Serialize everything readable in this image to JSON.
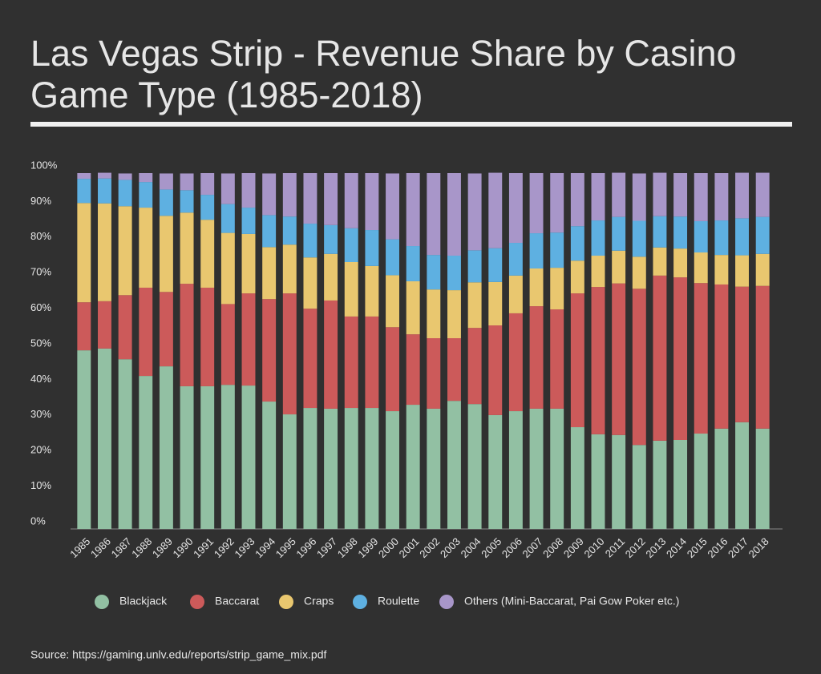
{
  "chart_data": {
    "type": "stacked_bar",
    "title": [
      "Las Vegas Strip - Revenue Share by Casino",
      "Game Type (1985-2018)"
    ],
    "source": "Source: https://gaming.unlv.edu/reports/strip_game_mix.pdf",
    "categories": [
      "1985",
      "1986",
      "1987",
      "1988",
      "1989",
      "1990",
      "1991",
      "1992",
      "1993",
      "1994",
      "1995",
      "1996",
      "1997",
      "1998",
      "1999",
      "2000",
      "2001",
      "2002",
      "2003",
      "2004",
      "2005",
      "2006",
      "2007",
      "2008",
      "2009",
      "2010",
      "2011",
      "2012",
      "2013",
      "2014",
      "2015",
      "2016",
      "2017",
      "2018"
    ],
    "ylim": [
      0,
      100
    ],
    "yticks": [
      {
        "value": 0,
        "label": "0%"
      },
      {
        "value": 10,
        "label": "10%"
      },
      {
        "value": 20,
        "label": "20%"
      },
      {
        "value": 30,
        "label": "30%"
      },
      {
        "value": 40,
        "label": "40%"
      },
      {
        "value": 50,
        "label": "50%"
      },
      {
        "value": 60,
        "label": "60%"
      },
      {
        "value": 70,
        "label": "70%"
      },
      {
        "value": 80,
        "label": "80%"
      },
      {
        "value": 90,
        "label": "90%"
      },
      {
        "value": 100,
        "label": "100%"
      }
    ],
    "legend": "bottom",
    "series": [
      {
        "name": "Blackjack",
        "color": "#92c0a3",
        "values": [
          50.2,
          50.7,
          47.7,
          43.0,
          45.7,
          40.1,
          40.1,
          40.5,
          40.3,
          35.8,
          32.2,
          34.0,
          33.8,
          34.0,
          34.0,
          33.1,
          34.9,
          33.8,
          36.0,
          35.1,
          32.0,
          33.1,
          33.8,
          33.8,
          28.6,
          26.6,
          26.4,
          23.6,
          24.8,
          25.0,
          26.8,
          28.2,
          30.0,
          28.2
        ]
      },
      {
        "name": "Baccarat",
        "color": "#cc5a5a",
        "values": [
          13.5,
          13.3,
          18.0,
          24.8,
          20.9,
          28.8,
          27.7,
          22.7,
          25.9,
          28.8,
          34.0,
          27.9,
          30.4,
          25.7,
          25.7,
          23.6,
          19.8,
          19.8,
          17.6,
          21.4,
          25.2,
          27.5,
          28.8,
          27.9,
          37.6,
          41.4,
          42.6,
          43.9,
          46.4,
          45.7,
          42.3,
          40.5,
          38.1,
          40.1
        ]
      },
      {
        "name": "Craps",
        "color": "#e9c76f",
        "values": [
          27.9,
          27.5,
          25.0,
          22.5,
          21.4,
          20.0,
          19.1,
          20.0,
          16.7,
          14.6,
          13.7,
          14.4,
          13.1,
          15.3,
          14.2,
          14.6,
          14.9,
          13.7,
          13.5,
          12.8,
          12.2,
          10.6,
          10.6,
          11.7,
          9.2,
          8.8,
          9.2,
          9.0,
          7.9,
          8.1,
          8.6,
          8.3,
          8.8,
          9.0
        ]
      },
      {
        "name": "Roulette",
        "color": "#5eb0e1",
        "values": [
          6.8,
          7.0,
          7.4,
          7.2,
          7.4,
          6.3,
          7.0,
          8.1,
          7.4,
          9.0,
          7.9,
          9.5,
          8.1,
          9.5,
          10.1,
          10.1,
          9.9,
          9.7,
          9.7,
          9.0,
          9.5,
          9.2,
          9.9,
          9.9,
          9.7,
          9.9,
          9.5,
          10.1,
          8.8,
          9.0,
          8.8,
          9.7,
          10.4,
          10.4
        ]
      },
      {
        "name": "Others (Mini-Baccarat, Pai Gow Poker etc.)",
        "color": "#a896c9",
        "values": [
          1.6,
          1.6,
          1.8,
          2.5,
          4.5,
          4.7,
          6.1,
          8.6,
          9.7,
          11.7,
          12.2,
          14.2,
          14.6,
          15.5,
          16.0,
          18.5,
          20.5,
          23.0,
          23.2,
          21.6,
          21.2,
          19.6,
          16.9,
          16.7,
          14.9,
          13.3,
          12.4,
          13.3,
          12.2,
          12.2,
          13.5,
          13.3,
          12.8,
          12.4
        ]
      }
    ]
  }
}
